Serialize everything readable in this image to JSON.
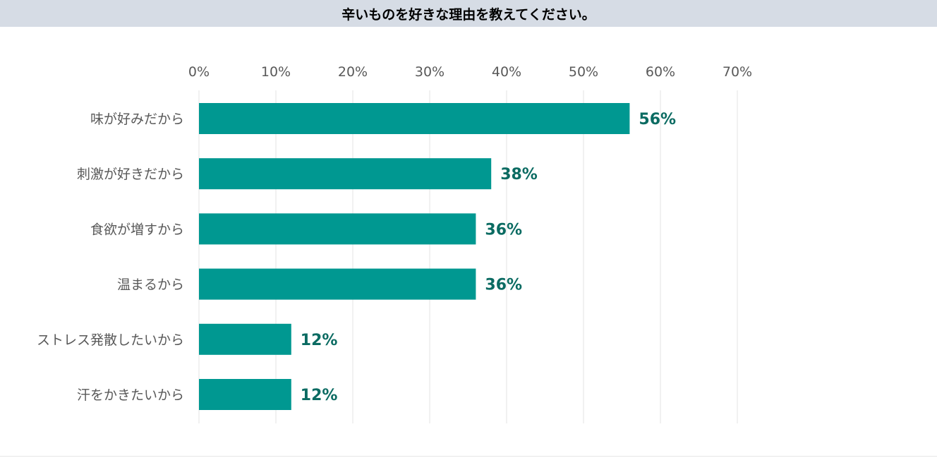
{
  "title": "辛いものを好きな理由を教えてください。",
  "chart_data": {
    "type": "bar",
    "orientation": "horizontal",
    "categories": [
      "味が好みだから",
      "刺激が好きだから",
      "食欲が増すから",
      "温まるから",
      "ストレス発散したいから",
      "汗をかきたいから"
    ],
    "values": [
      56,
      38,
      36,
      36,
      12,
      12
    ],
    "value_labels": [
      "56%",
      "38%",
      "36%",
      "36%",
      "12%",
      "12%"
    ],
    "xlim": [
      0,
      70
    ],
    "x_ticks": [
      "0%",
      "10%",
      "20%",
      "30%",
      "40%",
      "50%",
      "60%",
      "70%"
    ],
    "grid": true,
    "axis_position": "top",
    "bar_color": "#009891",
    "label_color": "#0b6b62"
  }
}
